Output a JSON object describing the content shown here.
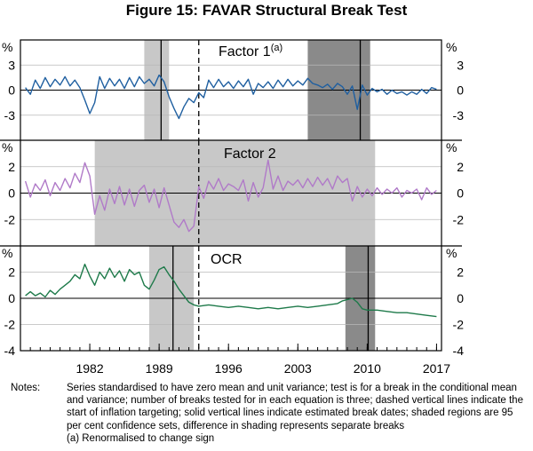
{
  "title": "Figure 15: FAVAR Structural Break Test",
  "x_ticks": [
    "1982",
    "1989",
    "1996",
    "2003",
    "2010",
    "2017"
  ],
  "notes_label": "Notes:",
  "notes_text": "Series standardised to have zero mean and unit variance; test is for a break in the conditional mean and variance; number of breaks tested for in each equation is three; dashed vertical lines indicate the start of inflation targeting; solid vertical lines indicate estimated break dates; shaded regions are 95 per cent confidence sets, difference in shading represents separate breaks",
  "footnote": "(a) Renormalised to change sign",
  "colors": {
    "factor1": "#1f5fa0",
    "factor2": "#b07ac8",
    "ocr": "#1e7a4a",
    "shade_light": "#c8c8c8",
    "shade_dark": "#8a8a8a"
  },
  "chart_data": {
    "type": "line",
    "xlim": [
      1975.0,
      2017.5
    ],
    "inflation_targeting_start": 1993.0,
    "panels": [
      {
        "label": "Factor 1",
        "label_sup": "(a)",
        "unit": "%",
        "yticks": [
          "3",
          "0",
          "-3"
        ],
        "ylim": [
          -6,
          6
        ],
        "shaded": [
          {
            "from": 1987.5,
            "to": 1990.0,
            "shade": "light"
          },
          {
            "from": 2004.0,
            "to": 2010.3,
            "shade": "dark"
          }
        ],
        "breaks": [
          1989.2,
          2009.3
        ],
        "series": {
          "x": [
            1975.5,
            1976.0,
            1976.5,
            1977.0,
            1977.5,
            1978.0,
            1978.5,
            1979.0,
            1979.5,
            1980.0,
            1980.5,
            1981.0,
            1981.5,
            1982.0,
            1982.5,
            1983.0,
            1983.5,
            1984.0,
            1984.5,
            1985.0,
            1985.5,
            1986.0,
            1986.5,
            1987.0,
            1987.5,
            1988.0,
            1988.5,
            1989.0,
            1989.5,
            1990.0,
            1990.5,
            1991.0,
            1991.5,
            1992.0,
            1992.5,
            1993.0,
            1993.5,
            1994.0,
            1994.5,
            1995.0,
            1995.5,
            1996.0,
            1996.5,
            1997.0,
            1997.5,
            1998.0,
            1998.5,
            1999.0,
            1999.5,
            2000.0,
            2000.5,
            2001.0,
            2001.5,
            2002.0,
            2002.5,
            2003.0,
            2003.5,
            2004.0,
            2004.5,
            2005.0,
            2005.5,
            2006.0,
            2006.5,
            2007.0,
            2007.5,
            2008.0,
            2008.5,
            2009.0,
            2009.5,
            2010.0,
            2010.5,
            2011.0,
            2011.5,
            2012.0,
            2012.5,
            2013.0,
            2013.5,
            2014.0,
            2014.5,
            2015.0,
            2015.5,
            2016.0,
            2016.5,
            2017.0
          ],
          "y": [
            0.3,
            -0.5,
            1.2,
            0.2,
            1.5,
            0.4,
            1.3,
            0.6,
            1.6,
            0.5,
            1.2,
            0.3,
            -1.2,
            -2.8,
            -1.5,
            1.6,
            0.2,
            1.4,
            0.5,
            1.3,
            0.2,
            1.5,
            0.4,
            1.6,
            0.8,
            1.3,
            0.5,
            1.8,
            1.0,
            -0.8,
            -2.2,
            -3.4,
            -2.0,
            -1.0,
            -1.5,
            -0.3,
            -0.9,
            1.2,
            0.3,
            1.3,
            0.4,
            1.0,
            0.2,
            1.1,
            0.4,
            1.3,
            -0.5,
            0.8,
            0.3,
            1.0,
            0.2,
            1.2,
            0.4,
            1.3,
            0.5,
            1.1,
            0.6,
            1.4,
            0.8,
            0.6,
            0.3,
            0.7,
            0.1,
            0.8,
            0.4,
            -0.5,
            0.5,
            -2.3,
            0.6,
            -0.6,
            0.2,
            -0.2,
            0.1,
            -0.5,
            0.0,
            -0.4,
            -0.2,
            -0.6,
            -0.2,
            -0.5,
            0.1,
            -0.4,
            0.3,
            0.1
          ]
        }
      },
      {
        "label": "Factor 2",
        "label_sup": "",
        "unit": "%",
        "yticks": [
          "2",
          "0",
          "-2"
        ],
        "ylim": [
          -4,
          4
        ],
        "shaded": [
          {
            "from": 1982.5,
            "to": 2010.8,
            "shade": "light"
          }
        ],
        "breaks": [],
        "series": {
          "x": [
            1975.5,
            1976.0,
            1976.5,
            1977.0,
            1977.5,
            1978.0,
            1978.5,
            1979.0,
            1979.5,
            1980.0,
            1980.5,
            1981.0,
            1981.5,
            1982.0,
            1982.5,
            1983.0,
            1983.5,
            1984.0,
            1984.5,
            1985.0,
            1985.5,
            1986.0,
            1986.5,
            1987.0,
            1987.5,
            1988.0,
            1988.5,
            1989.0,
            1989.5,
            1990.0,
            1990.5,
            1991.0,
            1991.5,
            1992.0,
            1992.5,
            1993.0,
            1993.5,
            1994.0,
            1994.5,
            1995.0,
            1995.5,
            1996.0,
            1996.5,
            1997.0,
            1997.5,
            1998.0,
            1998.5,
            1999.0,
            1999.5,
            2000.0,
            2000.5,
            2001.0,
            2001.5,
            2002.0,
            2002.5,
            2003.0,
            2003.5,
            2004.0,
            2004.5,
            2005.0,
            2005.5,
            2006.0,
            2006.5,
            2007.0,
            2007.5,
            2008.0,
            2008.5,
            2009.0,
            2009.5,
            2010.0,
            2010.5,
            2011.0,
            2011.5,
            2012.0,
            2012.5,
            2013.0,
            2013.5,
            2014.0,
            2014.5,
            2015.0,
            2015.5,
            2016.0,
            2016.5,
            2017.0
          ],
          "y": [
            0.9,
            -0.3,
            0.7,
            0.2,
            1.0,
            -0.2,
            0.8,
            0.2,
            1.1,
            0.4,
            1.5,
            0.8,
            2.3,
            1.3,
            -1.6,
            -0.2,
            -1.3,
            0.3,
            -0.8,
            0.5,
            -0.9,
            0.3,
            -1.0,
            0.2,
            0.6,
            -0.7,
            0.3,
            -1.1,
            0.4,
            -0.9,
            -2.2,
            -2.6,
            -2.0,
            -2.9,
            -2.5,
            0.5,
            -0.4,
            0.9,
            0.3,
            1.1,
            0.2,
            0.7,
            0.5,
            0.2,
            1.0,
            -0.6,
            0.8,
            -0.3,
            0.4,
            2.5,
            0.3,
            1.3,
            0.2,
            0.9,
            0.6,
            1.0,
            0.4,
            1.1,
            0.5,
            1.2,
            0.6,
            1.1,
            0.3,
            1.3,
            0.8,
            1.1,
            -0.6,
            0.5,
            -0.3,
            0.3,
            -0.2,
            0.4,
            -0.1,
            0.3,
            0.0,
            0.4,
            -0.3,
            0.2,
            0.0,
            0.3,
            -0.5,
            0.4,
            -0.1,
            0.2
          ]
        }
      },
      {
        "label": "OCR",
        "label_sup": "",
        "unit": "%",
        "yticks": [
          "2",
          "0",
          "-2",
          "-4"
        ],
        "ylim": [
          -4,
          4
        ],
        "shaded": [
          {
            "from": 1988.0,
            "to": 1992.5,
            "shade": "light"
          },
          {
            "from": 2007.8,
            "to": 2010.8,
            "shade": "dark"
          }
        ],
        "breaks": [
          1990.4,
          2010.1
        ],
        "series": {
          "x": [
            1975.5,
            1976.0,
            1976.5,
            1977.0,
            1977.5,
            1978.0,
            1978.5,
            1979.0,
            1979.5,
            1980.0,
            1980.5,
            1981.0,
            1981.5,
            1982.0,
            1982.5,
            1983.0,
            1983.5,
            1984.0,
            1984.5,
            1985.0,
            1985.5,
            1986.0,
            1986.5,
            1987.0,
            1987.5,
            1988.0,
            1988.5,
            1989.0,
            1989.5,
            1990.0,
            1990.5,
            1991.0,
            1991.5,
            1992.0,
            1992.5,
            1993.0,
            1994.0,
            1995.0,
            1996.0,
            1997.0,
            1998.0,
            1999.0,
            2000.0,
            2001.0,
            2002.0,
            2003.0,
            2004.0,
            2005.0,
            2006.0,
            2007.0,
            2007.5,
            2008.0,
            2008.5,
            2009.0,
            2009.5,
            2010.0,
            2011.0,
            2012.0,
            2013.0,
            2014.0,
            2015.0,
            2016.0,
            2017.0
          ],
          "y": [
            0.2,
            0.5,
            0.2,
            0.4,
            0.1,
            0.6,
            0.3,
            0.7,
            1.0,
            1.3,
            1.8,
            1.5,
            2.6,
            1.7,
            1.0,
            2.0,
            1.5,
            2.3,
            1.6,
            2.1,
            1.3,
            2.2,
            1.8,
            2.0,
            1.0,
            0.7,
            1.4,
            2.2,
            2.4,
            1.8,
            1.3,
            0.7,
            0.2,
            -0.3,
            -0.5,
            -0.6,
            -0.5,
            -0.6,
            -0.7,
            -0.6,
            -0.7,
            -0.8,
            -0.7,
            -0.8,
            -0.7,
            -0.6,
            -0.7,
            -0.6,
            -0.5,
            -0.4,
            -0.2,
            -0.1,
            0.0,
            -0.3,
            -0.8,
            -0.9,
            -0.9,
            -1.0,
            -1.1,
            -1.1,
            -1.2,
            -1.3,
            -1.4
          ]
        }
      }
    ]
  }
}
